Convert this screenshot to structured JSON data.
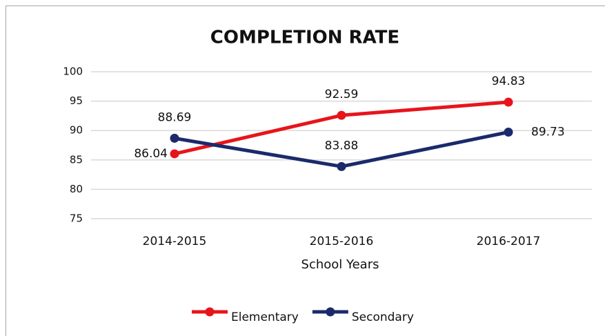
{
  "chart_data": {
    "type": "line",
    "title": "COMPLETION RATE",
    "x_label": "School Years",
    "categories": [
      "2014-2015",
      "2015-2016",
      "2016-2017"
    ],
    "series": [
      {
        "name": "Elementary",
        "color": "#e8141b",
        "values": [
          86.04,
          92.59,
          94.83
        ]
      },
      {
        "name": "Secondary",
        "color": "#1b2a6b",
        "values": [
          88.69,
          83.88,
          89.73
        ]
      }
    ],
    "ylim": [
      75,
      100
    ],
    "yticks": [
      75,
      80,
      85,
      90,
      95,
      100
    ],
    "grid": true,
    "legend": "bottom"
  }
}
